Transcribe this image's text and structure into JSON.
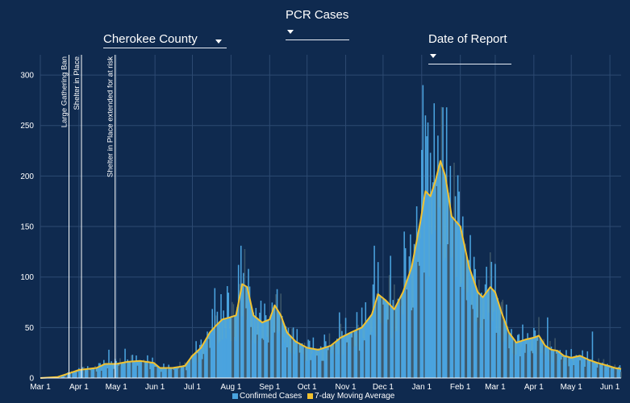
{
  "controls": {
    "metric": "PCR Cases",
    "county": "Cherokee County",
    "date_mode": "Date of Report"
  },
  "colors": {
    "background": "#0f2a4f",
    "bars": "#4aa3df",
    "bars_shadow": "#3d5668",
    "area": "#5aaed8",
    "line": "#f2c230",
    "grid": "#2d4a72"
  },
  "chart_data": {
    "type": "bar",
    "title": "PCR Cases",
    "x_start": "2020-03-01",
    "x_end": "2021-06-10",
    "ylim": [
      0,
      320
    ],
    "y_ticks": [
      0,
      50,
      100,
      150,
      200,
      250,
      300
    ],
    "x_tick_labels": [
      "Mar 1",
      "Apr 1",
      "May 1",
      "Jun 1",
      "Jul 1",
      "Aug 1",
      "Sep 1",
      "Oct 1",
      "Nov 1",
      "Dec 1",
      "Jan 1",
      "Feb 1",
      "Mar 1",
      "Apr 1",
      "May 1",
      "Jun 1"
    ],
    "x_tick_dates": [
      "2020-03-01",
      "2020-04-01",
      "2020-05-01",
      "2020-06-01",
      "2020-07-01",
      "2020-08-01",
      "2020-09-01",
      "2020-10-01",
      "2020-11-01",
      "2020-12-01",
      "2021-01-01",
      "2021-02-01",
      "2021-03-01",
      "2021-04-01",
      "2021-05-01",
      "2021-06-01"
    ],
    "annotations": [
      {
        "date": "2020-03-24",
        "label": "Large Gathering Ban"
      },
      {
        "date": "2020-04-03",
        "label": "Shelter in Place"
      },
      {
        "date": "2020-04-30",
        "label": "Shelter in Place extended for at risk"
      }
    ],
    "series": [
      {
        "name": "7-day Moving Average",
        "points": [
          [
            "2020-03-01",
            0
          ],
          [
            "2020-03-15",
            1
          ],
          [
            "2020-03-25",
            5
          ],
          [
            "2020-04-01",
            8
          ],
          [
            "2020-04-15",
            10
          ],
          [
            "2020-04-22",
            14
          ],
          [
            "2020-05-01",
            14
          ],
          [
            "2020-05-10",
            16
          ],
          [
            "2020-05-20",
            17
          ],
          [
            "2020-05-31",
            15
          ],
          [
            "2020-06-05",
            10
          ],
          [
            "2020-06-15",
            10
          ],
          [
            "2020-06-25",
            12
          ],
          [
            "2020-07-01",
            22
          ],
          [
            "2020-07-08",
            30
          ],
          [
            "2020-07-15",
            45
          ],
          [
            "2020-07-20",
            52
          ],
          [
            "2020-07-25",
            58
          ],
          [
            "2020-07-31",
            60
          ],
          [
            "2020-08-05",
            62
          ],
          [
            "2020-08-10",
            93
          ],
          [
            "2020-08-14",
            90
          ],
          [
            "2020-08-19",
            62
          ],
          [
            "2020-08-26",
            55
          ],
          [
            "2020-09-01",
            58
          ],
          [
            "2020-09-05",
            72
          ],
          [
            "2020-09-10",
            62
          ],
          [
            "2020-09-15",
            45
          ],
          [
            "2020-09-22",
            36
          ],
          [
            "2020-10-01",
            30
          ],
          [
            "2020-10-10",
            28
          ],
          [
            "2020-10-20",
            32
          ],
          [
            "2020-10-28",
            40
          ],
          [
            "2020-11-05",
            45
          ],
          [
            "2020-11-14",
            50
          ],
          [
            "2020-11-22",
            63
          ],
          [
            "2020-11-27",
            83
          ],
          [
            "2020-12-03",
            77
          ],
          [
            "2020-12-10",
            68
          ],
          [
            "2020-12-17",
            85
          ],
          [
            "2020-12-24",
            110
          ],
          [
            "2020-12-31",
            155
          ],
          [
            "2021-01-04",
            185
          ],
          [
            "2021-01-08",
            180
          ],
          [
            "2021-01-12",
            195
          ],
          [
            "2021-01-16",
            215
          ],
          [
            "2021-01-20",
            200
          ],
          [
            "2021-01-25",
            160
          ],
          [
            "2021-02-01",
            150
          ],
          [
            "2021-02-08",
            110
          ],
          [
            "2021-02-15",
            85
          ],
          [
            "2021-02-19",
            80
          ],
          [
            "2021-02-25",
            90
          ],
          [
            "2021-03-01",
            85
          ],
          [
            "2021-03-06",
            65
          ],
          [
            "2021-03-12",
            45
          ],
          [
            "2021-03-18",
            35
          ],
          [
            "2021-03-25",
            38
          ],
          [
            "2021-04-01",
            40
          ],
          [
            "2021-04-05",
            42
          ],
          [
            "2021-04-10",
            32
          ],
          [
            "2021-04-15",
            28
          ],
          [
            "2021-04-20",
            27
          ],
          [
            "2021-04-25",
            22
          ],
          [
            "2021-05-01",
            20
          ],
          [
            "2021-05-08",
            22
          ],
          [
            "2021-05-15",
            18
          ],
          [
            "2021-05-22",
            15
          ],
          [
            "2021-05-31",
            12
          ],
          [
            "2021-06-05",
            10
          ],
          [
            "2021-06-10",
            9
          ]
        ]
      },
      {
        "name": "Confirmed Cases",
        "peaks": [
          [
            "2020-04-25",
            28
          ],
          [
            "2020-05-08",
            29
          ],
          [
            "2020-05-14",
            23
          ],
          [
            "2020-07-19",
            89
          ],
          [
            "2020-07-24",
            83
          ],
          [
            "2020-07-29",
            91
          ],
          [
            "2020-08-07",
            112
          ],
          [
            "2020-08-09",
            131
          ],
          [
            "2020-08-11",
            104
          ],
          [
            "2020-09-07",
            88
          ],
          [
            "2020-09-20",
            50
          ],
          [
            "2020-10-15",
            43
          ],
          [
            "2020-10-27",
            65
          ],
          [
            "2020-11-17",
            75
          ],
          [
            "2020-11-24",
            131
          ],
          [
            "2020-12-07",
            121
          ],
          [
            "2020-12-18",
            145
          ],
          [
            "2020-12-28",
            170
          ],
          [
            "2021-01-02",
            290
          ],
          [
            "2021-01-04",
            260
          ],
          [
            "2021-01-06",
            253
          ],
          [
            "2021-01-08",
            223
          ],
          [
            "2021-01-11",
            272
          ],
          [
            "2021-01-14",
            240
          ],
          [
            "2021-01-18",
            268
          ],
          [
            "2021-01-21",
            268
          ],
          [
            "2021-01-24",
            210
          ],
          [
            "2021-01-28",
            180
          ],
          [
            "2021-02-12",
            120
          ],
          [
            "2021-02-26",
            115
          ],
          [
            "2021-03-01",
            113
          ],
          [
            "2021-04-12",
            60
          ],
          [
            "2021-05-18",
            46
          ]
        ]
      }
    ],
    "legend": [
      "Confirmed Cases",
      "7-day Moving Average"
    ],
    "legend_position": "bottom-center"
  }
}
